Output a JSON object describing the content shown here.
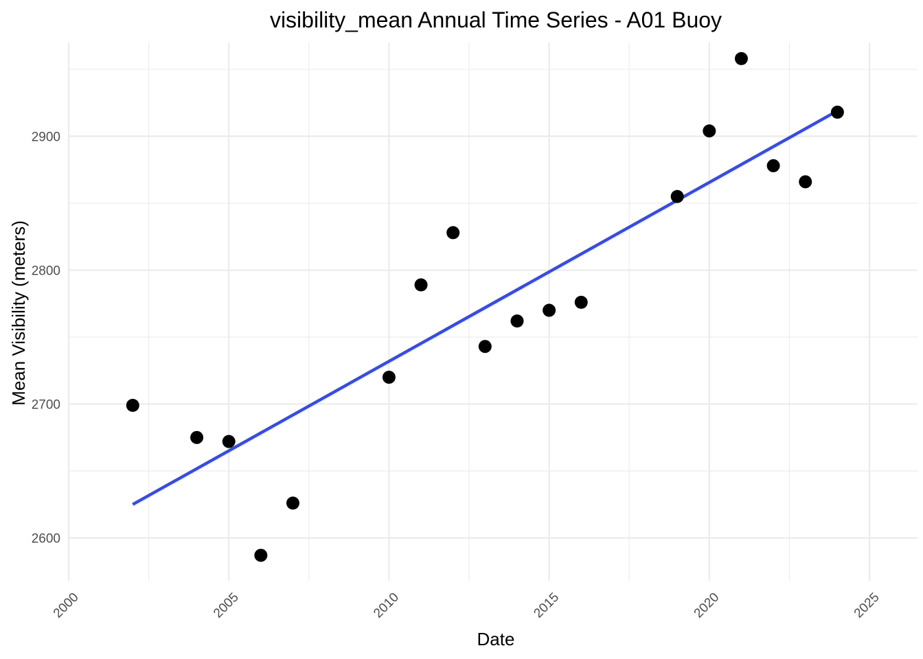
{
  "chart_data": {
    "type": "scatter",
    "title": "visibility_mean Annual Time Series - A01 Buoy",
    "xlabel": "Date",
    "ylabel": "Mean Visibility (meters)",
    "xlim": [
      2000,
      2026.5
    ],
    "ylim": [
      2568,
      2970
    ],
    "x_ticks": [
      2000,
      2005,
      2010,
      2015,
      2020,
      2025
    ],
    "x_minor_ticks": [
      2002.5,
      2007.5,
      2012.5,
      2017.5,
      2022.5
    ],
    "y_ticks": [
      2600,
      2700,
      2800,
      2900
    ],
    "y_minor_ticks": [
      2650,
      2750,
      2850,
      2950
    ],
    "grid": true,
    "x_tick_rotation_deg": 45,
    "series": [
      {
        "kind": "points",
        "color": "#000000",
        "points": [
          {
            "x": 2002,
            "y": 2699
          },
          {
            "x": 2004,
            "y": 2675
          },
          {
            "x": 2005,
            "y": 2672
          },
          {
            "x": 2006,
            "y": 2587
          },
          {
            "x": 2007,
            "y": 2626
          },
          {
            "x": 2010,
            "y": 2720
          },
          {
            "x": 2011,
            "y": 2789
          },
          {
            "x": 2012,
            "y": 2828
          },
          {
            "x": 2013,
            "y": 2743
          },
          {
            "x": 2014,
            "y": 2762
          },
          {
            "x": 2015,
            "y": 2770
          },
          {
            "x": 2016,
            "y": 2776
          },
          {
            "x": 2019,
            "y": 2855
          },
          {
            "x": 2020,
            "y": 2904
          },
          {
            "x": 2021,
            "y": 2958
          },
          {
            "x": 2022,
            "y": 2878
          },
          {
            "x": 2023,
            "y": 2866
          },
          {
            "x": 2024,
            "y": 2918
          }
        ]
      },
      {
        "kind": "trend-line",
        "color": "#3349ff",
        "points": [
          {
            "x": 2002,
            "y": 2625
          },
          {
            "x": 2024,
            "y": 2919
          }
        ]
      }
    ]
  }
}
